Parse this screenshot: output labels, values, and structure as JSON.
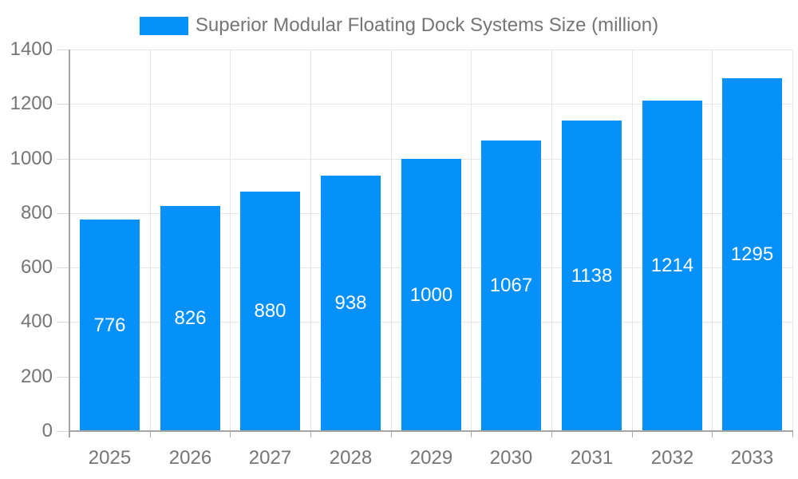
{
  "chart_data": {
    "type": "bar",
    "title": "Superior Modular Floating Dock Systems Size (million)",
    "categories": [
      "2025",
      "2026",
      "2027",
      "2028",
      "2029",
      "2030",
      "2031",
      "2032",
      "2033"
    ],
    "values": [
      776,
      826,
      880,
      938,
      1000,
      1067,
      1138,
      1214,
      1295
    ],
    "xlabel": "",
    "ylabel": "",
    "ylim": [
      0,
      1400
    ],
    "yticks": [
      0,
      200,
      400,
      600,
      800,
      1000,
      1200,
      1400
    ],
    "grid": true,
    "legend_position": "top",
    "colors": {
      "bar": "#0590fa",
      "value_label": "#ffffff",
      "axis_text": "#757575",
      "title_text": "#757575",
      "gridline": "#e6e6e6",
      "axis_line": "#a6a6a6"
    }
  }
}
